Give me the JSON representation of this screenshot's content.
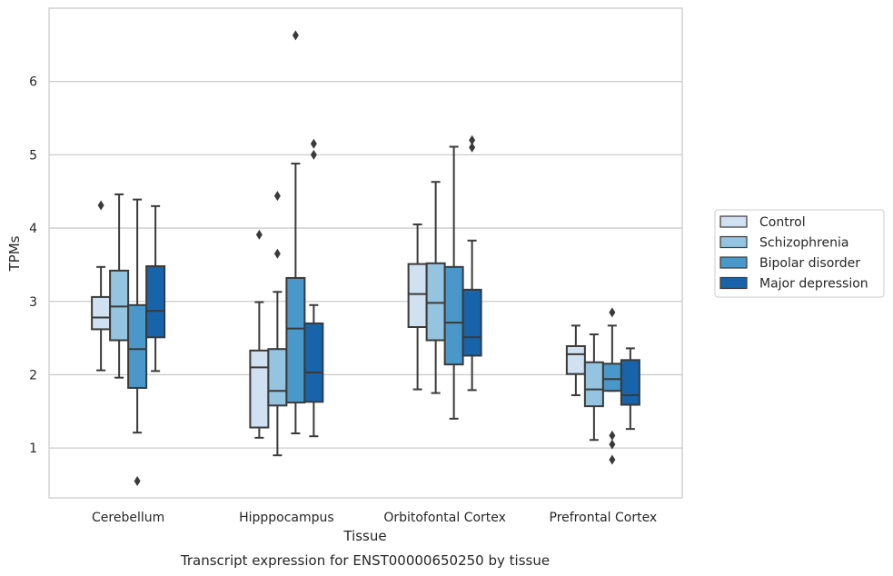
{
  "chart_data": {
    "type": "box",
    "caption": "Transcript expression for ENST00000650250 by tissue",
    "xlabel": "Tissue",
    "ylabel": "TPMs",
    "ylim": [
      0.32,
      7.0
    ],
    "yticks": [
      1,
      2,
      3,
      4,
      5,
      6
    ],
    "grid": true,
    "legend_placement": "right",
    "categories": [
      "Cerebellum",
      "Hipppocampus",
      "Orbitofontal Cortex",
      "Prefrontal Cortex"
    ],
    "series": [
      {
        "name": "Control",
        "color": "#d0e1f2",
        "boxes": [
          {
            "whisker_low": 2.06,
            "q1": 2.62,
            "median": 2.78,
            "q3": 3.06,
            "whisker_high": 3.47,
            "outliers": [
              4.31
            ]
          },
          {
            "whisker_low": 1.14,
            "q1": 1.28,
            "median": 2.1,
            "q3": 2.33,
            "whisker_high": 2.99,
            "outliers": [
              3.91
            ]
          },
          {
            "whisker_low": 1.8,
            "q1": 2.65,
            "median": 3.1,
            "q3": 3.51,
            "whisker_high": 4.05,
            "outliers": []
          },
          {
            "whisker_low": 1.72,
            "q1": 2.01,
            "median": 2.28,
            "q3": 2.39,
            "whisker_high": 2.67,
            "outliers": []
          }
        ]
      },
      {
        "name": "Schizophrenia",
        "color": "#94c4df",
        "boxes": [
          {
            "whisker_low": 1.96,
            "q1": 2.47,
            "median": 2.93,
            "q3": 3.42,
            "whisker_high": 4.46,
            "outliers": []
          },
          {
            "whisker_low": 0.9,
            "q1": 1.58,
            "median": 1.78,
            "q3": 2.35,
            "whisker_high": 3.13,
            "outliers": [
              4.44,
              3.65
            ]
          },
          {
            "whisker_low": 1.75,
            "q1": 2.47,
            "median": 2.98,
            "q3": 3.52,
            "whisker_high": 4.63,
            "outliers": []
          },
          {
            "whisker_low": 1.11,
            "q1": 1.57,
            "median": 1.8,
            "q3": 2.17,
            "whisker_high": 2.55,
            "outliers": []
          }
        ]
      },
      {
        "name": "Bipolar disorder",
        "color": "#4a98c9",
        "boxes": [
          {
            "whisker_low": 1.21,
            "q1": 1.82,
            "median": 2.35,
            "q3": 2.95,
            "whisker_high": 4.39,
            "outliers": [
              0.55
            ]
          },
          {
            "whisker_low": 1.2,
            "q1": 1.62,
            "median": 2.63,
            "q3": 3.32,
            "whisker_high": 4.88,
            "outliers": [
              6.63
            ]
          },
          {
            "whisker_low": 1.4,
            "q1": 2.14,
            "median": 2.71,
            "q3": 3.47,
            "whisker_high": 5.11,
            "outliers": []
          },
          {
            "whisker_low": 1.78,
            "q1": 1.78,
            "median": 1.94,
            "q3": 2.15,
            "whisker_high": 2.67,
            "outliers": [
              2.85,
              1.17,
              1.05,
              0.84
            ]
          }
        ]
      },
      {
        "name": "Major depression",
        "color": "#1764ab",
        "boxes": [
          {
            "whisker_low": 2.05,
            "q1": 2.51,
            "median": 2.87,
            "q3": 3.48,
            "whisker_high": 4.3,
            "outliers": []
          },
          {
            "whisker_low": 1.16,
            "q1": 1.63,
            "median": 2.03,
            "q3": 2.7,
            "whisker_high": 2.95,
            "outliers": [
              5.15,
              5.0
            ]
          },
          {
            "whisker_low": 1.79,
            "q1": 2.26,
            "median": 2.51,
            "q3": 3.16,
            "whisker_high": 3.83,
            "outliers": [
              5.2,
              5.1
            ]
          },
          {
            "whisker_low": 1.26,
            "q1": 1.59,
            "median": 1.72,
            "q3": 2.2,
            "whisker_high": 2.36,
            "outliers": []
          }
        ]
      }
    ]
  }
}
